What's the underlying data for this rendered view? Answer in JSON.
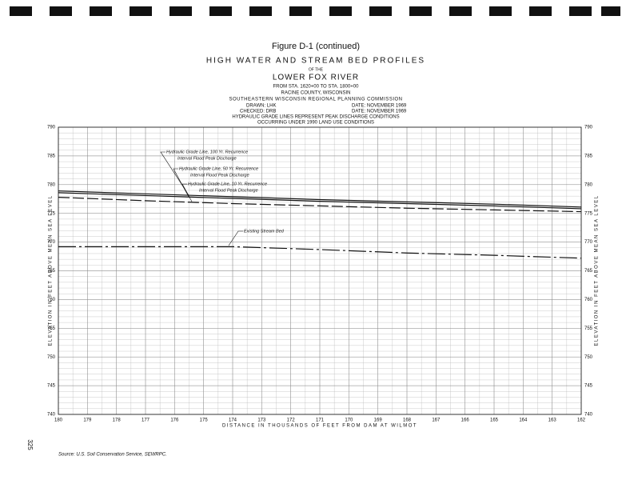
{
  "chart_data": {
    "type": "line",
    "figure": "Figure D-1 (continued)",
    "title": "HIGH WATER AND STREAM BED PROFILES",
    "title_connector": "OF THE",
    "subtitle": "LOWER FOX RIVER",
    "station_range": "FROM STA. 1620+00 TO STA. 1800+00",
    "county": "RACINE COUNTY, WISCONSIN",
    "agency": "SOUTHEASTERN WISCONSIN REGIONAL PLANNING COMMISSION",
    "drawn": "DRAWN: LHK",
    "drawn_date": "DATE: NOVEMBER 1969",
    "checked": "CHECKED: DRB",
    "checked_date": "DATE: NOVEMBER 1969",
    "notes": [
      "HYDRAULIC GRADE LINES REPRESENT PEAK DISCHARGE CONDITIONS",
      "OCCURRING UNDER 1990 LAND USE CONDITIONS"
    ],
    "x_label": "DISTANCE IN THOUSANDS OF FEET FROM DAM AT WILMOT",
    "y_label": "ELEVATION IN FEET ABOVE MEAN SEA LEVEL",
    "page_number": "325",
    "source": "Source: U.S. Soil Conservation Service, SEWRPC.",
    "x": [
      180,
      177,
      174,
      171,
      168,
      165,
      162
    ],
    "series": [
      {
        "name": "Hydraulic Grade Line, 100 Yr. Recurrence",
        "name_line2": "Interval Flood Peak Discharge",
        "color": "#111111",
        "dash": "none",
        "values": [
          778.9,
          778.4,
          777.9,
          777.4,
          777.0,
          776.6,
          776.1
        ]
      },
      {
        "name": "Hydraulic Grade Line, 50 Yr. Recurrence",
        "name_line2": "Interval Flood Peak Discharge",
        "color": "#111111",
        "dash": "none",
        "values": [
          778.6,
          778.1,
          777.6,
          777.1,
          776.7,
          776.3,
          775.8
        ]
      },
      {
        "name": "Hydraulic Grade Line, 10 Yr. Recurrence",
        "name_line2": "Interval Flood Peak Discharge",
        "color": "#111111",
        "dash": "14 4",
        "values": [
          777.8,
          777.2,
          776.7,
          776.3,
          775.9,
          775.6,
          775.3
        ]
      },
      {
        "name": "Existing Stream Bed",
        "color": "#111111",
        "dash": "22 4 3 4",
        "values": [
          769.2,
          769.2,
          769.2,
          768.7,
          768.1,
          767.7,
          767.2
        ]
      }
    ],
    "xlim": [
      180,
      162
    ],
    "xticks": [
      180,
      179,
      178,
      177,
      176,
      175,
      174,
      173,
      172,
      171,
      170,
      169,
      168,
      167,
      166,
      165,
      164,
      163,
      162
    ],
    "ylim": [
      740,
      790
    ],
    "yticks": [
      740,
      745,
      750,
      755,
      760,
      765,
      770,
      775,
      780,
      785,
      790
    ],
    "grid": true,
    "minor_grid": true
  }
}
